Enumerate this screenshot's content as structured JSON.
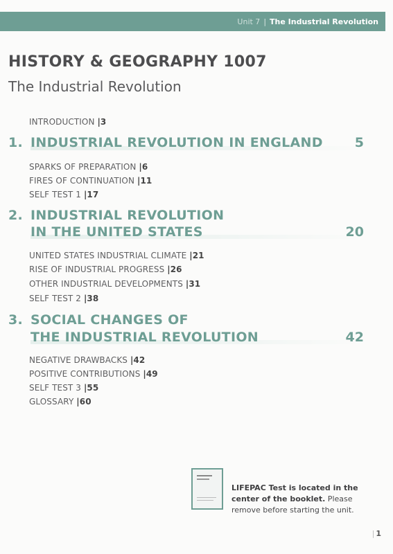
{
  "header": {
    "unit": "Unit 7",
    "separator": "|",
    "title": "The Industrial Revolution"
  },
  "title": "HISTORY & GEOGRAPHY 1007",
  "subtitle": "The Industrial Revolution",
  "intro": {
    "label": "INTRODUCTION",
    "page": "|3"
  },
  "sections": [
    {
      "number": "1.",
      "title_lines": [
        "INDUSTRIAL REVOLUTION IN ENGLAND"
      ],
      "page": "5",
      "items": [
        {
          "label": "SPARKS OF PREPARATION",
          "page": "|6"
        },
        {
          "label": "FIRES OF CONTINUATION",
          "page": "|11"
        },
        {
          "label": "SELF TEST 1",
          "page": "|17"
        }
      ]
    },
    {
      "number": "2.",
      "title_lines": [
        "INDUSTRIAL REVOLUTION",
        "IN THE  UNITED STATES"
      ],
      "page": "20",
      "items": [
        {
          "label": "UNITED STATES INDUSTRIAL CLIMATE",
          "page": "|21"
        },
        {
          "label": "RISE OF INDUSTRIAL PROGRESS",
          "page": "|26"
        },
        {
          "label": "OTHER INDUSTRIAL DEVELOPMENTS",
          "page": "|31"
        },
        {
          "label": "SELF TEST 2",
          "page": "|38"
        }
      ]
    },
    {
      "number": "3.",
      "title_lines": [
        "SOCIAL CHANGES OF",
        "THE INDUSTRIAL REVOLUTION"
      ],
      "page": "42",
      "items": [
        {
          "label": "NEGATIVE DRAWBACKS",
          "page": "|42"
        },
        {
          "label": "POSITIVE CONTRIBUTIONS",
          "page": "|49"
        },
        {
          "label": "SELF TEST 3",
          "page": "|55"
        },
        {
          "label": "GLOSSARY",
          "page": "|60"
        }
      ]
    }
  ],
  "note": {
    "bold": "LIFEPAC Test is located in the center of the booklet.",
    "rest": " Please remove before starting the unit."
  },
  "footer": {
    "bar": "|",
    "page": "1"
  },
  "colors": {
    "accent": "#6e9e94",
    "text": "#555555"
  }
}
